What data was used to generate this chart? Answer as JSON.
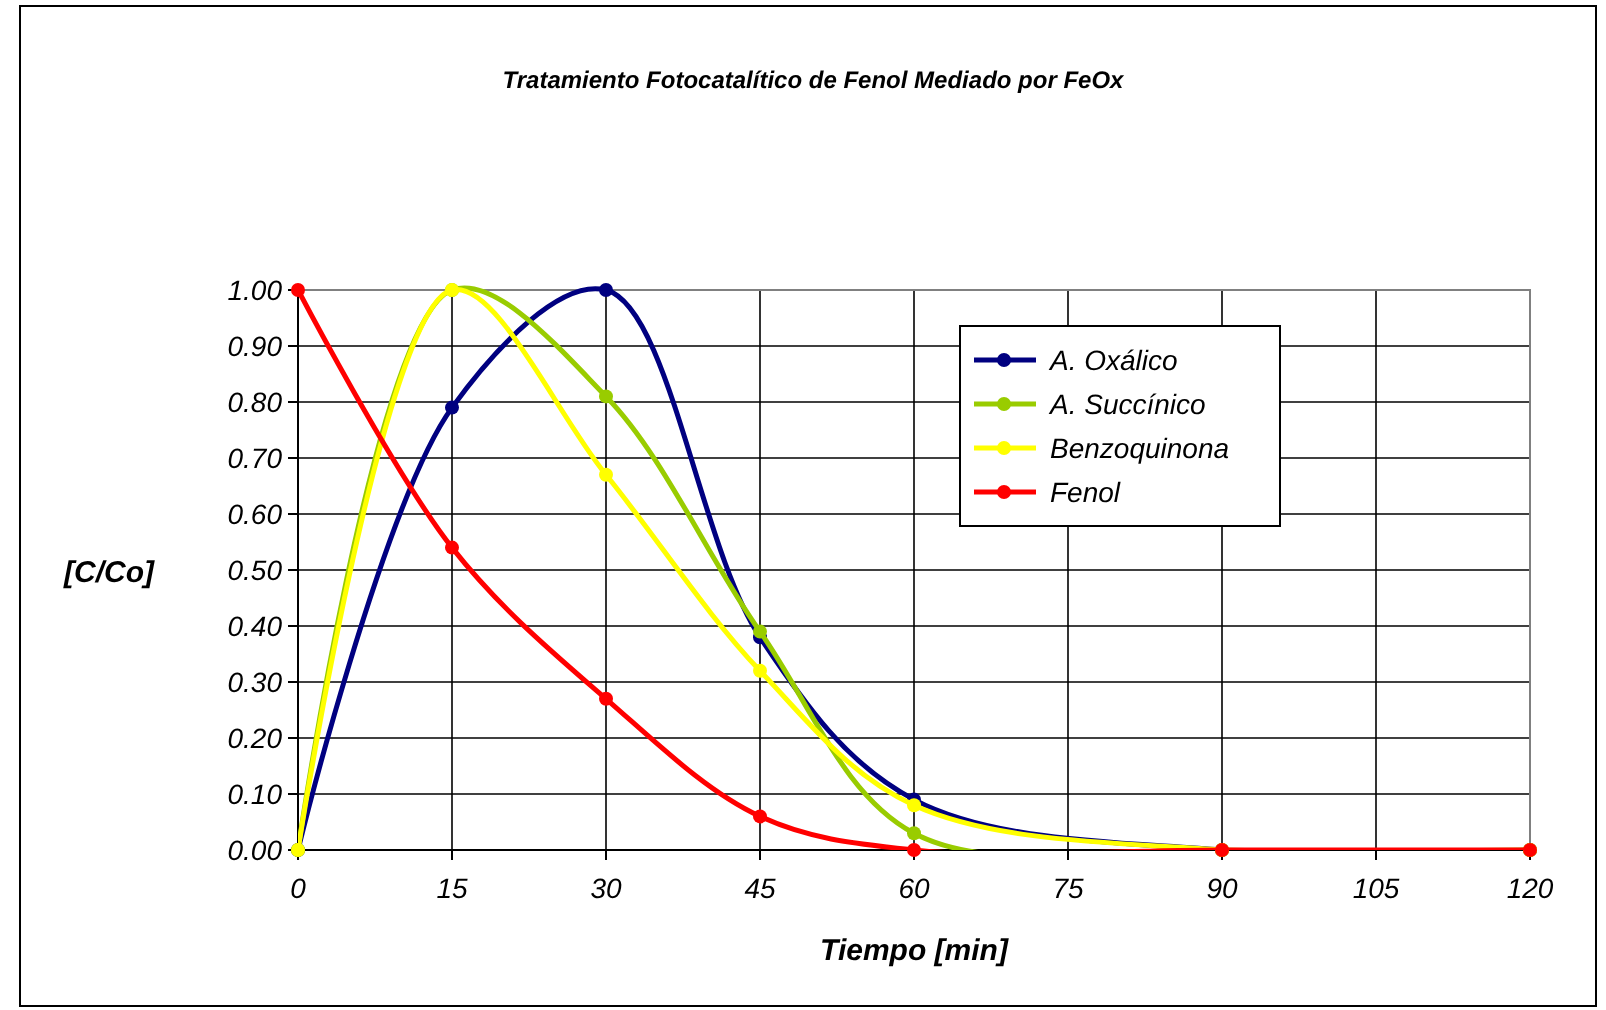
{
  "chart_data": {
    "type": "line",
    "title": "Tratamiento Fotocatalítico de Fenol Mediado por FeOx",
    "xlabel": "Tiempo [min]",
    "ylabel": "[C/Co]",
    "x": [
      0,
      15,
      30,
      45,
      60,
      90,
      120
    ],
    "series": [
      {
        "name": "A. Oxálico",
        "color": "#000080",
        "values": [
          0,
          0.79,
          1.0,
          0.38,
          0.09,
          0,
          0
        ]
      },
      {
        "name": "A. Succínico",
        "color": "#99cc00",
        "values": [
          0,
          1.0,
          0.81,
          0.39,
          0.03,
          0,
          0
        ]
      },
      {
        "name": "Benzoquinona",
        "color": "#ffff00",
        "values": [
          0,
          1.0,
          0.67,
          0.32,
          0.08,
          0,
          0
        ]
      },
      {
        "name": "Fenol",
        "color": "#ff0000",
        "values": [
          1.0,
          0.54,
          0.27,
          0.06,
          0,
          0,
          0
        ]
      }
    ],
    "xlim": [
      0,
      120
    ],
    "xticks": [
      0,
      15,
      30,
      45,
      60,
      75,
      90,
      105,
      120
    ],
    "ylim": [
      0,
      1
    ],
    "yticks": [
      {
        "value": 0,
        "label": "0.00"
      },
      {
        "value": 0.1,
        "label": "0.10"
      },
      {
        "value": 0.2,
        "label": "0.20"
      },
      {
        "value": 0.3,
        "label": "0.30"
      },
      {
        "value": 0.4,
        "label": "0.40"
      },
      {
        "value": 0.5,
        "label": "0.50"
      },
      {
        "value": 0.6,
        "label": "0.60"
      },
      {
        "value": 0.7,
        "label": "0.70"
      },
      {
        "value": 0.8,
        "label": "0.80"
      },
      {
        "value": 0.9,
        "label": "0.90"
      },
      {
        "value": 1,
        "label": "1.00"
      }
    ],
    "grid": true,
    "legend": "top right",
    "marker": "circle",
    "line_style": "solid"
  }
}
